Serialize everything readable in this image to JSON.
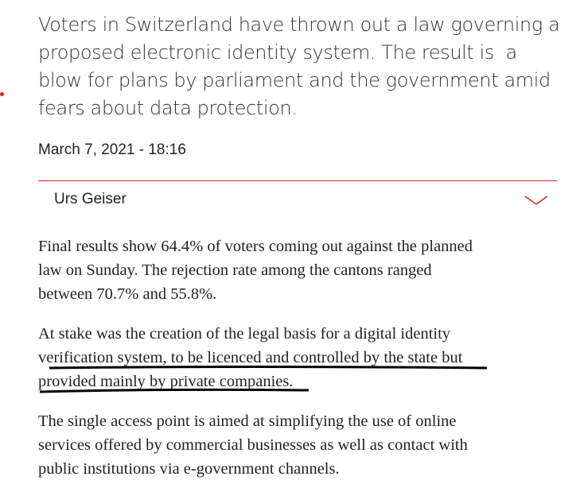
{
  "article": {
    "lead_lines": [
      "Voters in Switzerland have thrown out a law governing a",
      "proposed electronic identity system. The result is  a",
      "blow for plans by parliament and the government amid",
      "fears about data protection."
    ],
    "date": "March 7, 2021 - 18:16",
    "author": "Urs Geiser",
    "paragraphs": [
      [
        "Final results show 64.4% of voters coming out against the planned",
        "law on Sunday. The rejection rate among the cantons ranged",
        "between 70.7% and 55.8%."
      ],
      [
        "At stake was the creation of the legal basis for a digital identity",
        "verification system, to be licenced and controlled by the state but",
        "provided mainly by private companies."
      ],
      [
        "The single access point is aimed at simplifying the use of online",
        "services offered by commercial businesses as well as contact with",
        "public institutions via e-government channels."
      ]
    ]
  }
}
